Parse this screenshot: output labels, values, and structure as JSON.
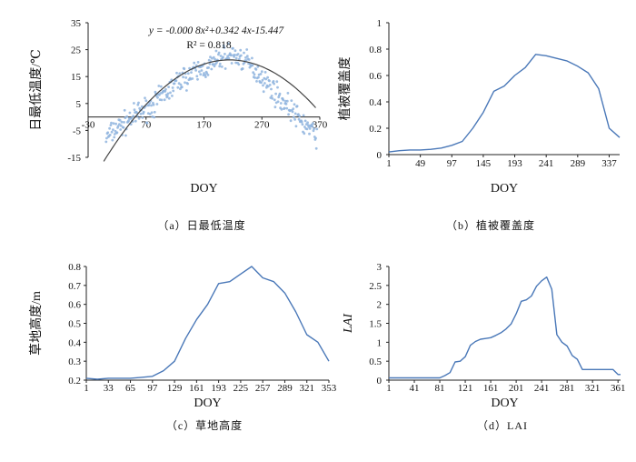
{
  "chart_data": [
    {
      "panel": "a",
      "type": "scatter",
      "caption": "（a）日最低温度",
      "xlabel": "DOY",
      "ylabel": "日最低温度/℃",
      "xlim": [
        -30,
        370
      ],
      "ylim": [
        -15,
        35
      ],
      "x_ticks": [
        -30,
        70,
        170,
        270,
        370
      ],
      "y_ticks": [
        -15,
        -5,
        5,
        15,
        25,
        35
      ],
      "equation": "y = -0.000 8x²+0.342 4x-15.447",
      "r_squared": "R² = 0.818",
      "fit": {
        "a": -0.0008,
        "b": 0.3424,
        "c": -15.447,
        "x_range": [
          1,
          365
        ]
      },
      "point_color": "#8fb4de",
      "fit_color": "#444444",
      "series": [
        {
          "x": [
            1,
            10,
            20,
            30,
            40,
            50,
            60,
            70,
            80,
            90,
            100,
            110,
            120,
            130,
            140,
            150,
            160,
            170,
            180,
            190,
            200,
            210,
            220,
            230,
            240,
            250,
            260,
            270,
            280,
            290,
            300,
            310,
            320,
            330,
            340,
            350,
            360,
            365
          ],
          "y": [
            -8,
            -6,
            -4,
            -3,
            -1,
            0,
            2,
            3,
            4,
            6,
            8,
            10,
            12,
            14,
            15,
            16,
            17,
            18,
            19,
            20,
            22,
            23,
            23,
            22,
            21,
            19,
            17,
            15,
            12,
            10,
            7,
            5,
            3,
            0,
            -2,
            -4,
            -6,
            -7
          ]
        }
      ]
    },
    {
      "panel": "b",
      "type": "line",
      "caption": "（b）植被覆盖度",
      "xlabel": "DOY",
      "ylabel": "植被覆盖度",
      "xlim": [
        1,
        353
      ],
      "ylim": [
        0,
        1
      ],
      "x_ticks": [
        1,
        49,
        97,
        145,
        193,
        241,
        289,
        337
      ],
      "y_ticks": [
        0,
        0.2,
        0.4,
        0.6,
        0.8,
        1
      ],
      "line_color": "#4a78b8",
      "x": [
        1,
        17,
        33,
        49,
        65,
        81,
        97,
        113,
        129,
        145,
        161,
        177,
        193,
        209,
        225,
        241,
        257,
        273,
        289,
        305,
        321,
        337,
        353
      ],
      "y": [
        0.02,
        0.03,
        0.035,
        0.035,
        0.04,
        0.05,
        0.07,
        0.1,
        0.2,
        0.32,
        0.48,
        0.52,
        0.6,
        0.66,
        0.76,
        0.75,
        0.73,
        0.71,
        0.67,
        0.62,
        0.5,
        0.2,
        0.13
      ]
    },
    {
      "panel": "c",
      "type": "line",
      "caption": "（c）草地高度",
      "xlabel": "DOY",
      "ylabel": "草地高度/m",
      "xlim": [
        1,
        353
      ],
      "ylim": [
        0.2,
        0.8
      ],
      "x_ticks": [
        1,
        33,
        65,
        97,
        129,
        161,
        193,
        225,
        257,
        289,
        321,
        353
      ],
      "y_ticks": [
        0.2,
        0.3,
        0.4,
        0.5,
        0.6,
        0.7,
        0.8
      ],
      "line_color": "#4a78b8",
      "x": [
        1,
        17,
        33,
        49,
        65,
        81,
        97,
        113,
        129,
        145,
        161,
        177,
        193,
        209,
        225,
        241,
        257,
        273,
        289,
        305,
        321,
        337,
        353
      ],
      "y": [
        0.21,
        0.205,
        0.21,
        0.21,
        0.21,
        0.215,
        0.22,
        0.25,
        0.3,
        0.42,
        0.52,
        0.6,
        0.71,
        0.72,
        0.76,
        0.8,
        0.74,
        0.72,
        0.66,
        0.56,
        0.44,
        0.4,
        0.3
      ]
    },
    {
      "panel": "d",
      "type": "line",
      "caption": "（d）LAI",
      "xlabel": "DOY",
      "ylabel": "LAI",
      "xlim": [
        1,
        365
      ],
      "ylim": [
        0,
        3
      ],
      "x_ticks": [
        1,
        41,
        81,
        121,
        161,
        201,
        241,
        281,
        321,
        361
      ],
      "y_ticks": [
        0,
        0.5,
        1,
        1.5,
        2,
        2.5,
        3
      ],
      "line_color": "#4a78b8",
      "x": [
        1,
        9,
        17,
        25,
        33,
        41,
        49,
        57,
        65,
        73,
        81,
        89,
        97,
        105,
        113,
        121,
        129,
        137,
        145,
        153,
        161,
        169,
        177,
        185,
        193,
        201,
        209,
        217,
        225,
        233,
        241,
        249,
        257,
        265,
        273,
        281,
        289,
        297,
        305,
        313,
        321,
        329,
        337,
        345,
        353,
        361,
        365
      ],
      "y": [
        0.06,
        0.06,
        0.06,
        0.06,
        0.06,
        0.06,
        0.06,
        0.06,
        0.06,
        0.06,
        0.06,
        0.12,
        0.2,
        0.48,
        0.5,
        0.62,
        0.92,
        1.02,
        1.08,
        1.1,
        1.12,
        1.18,
        1.25,
        1.35,
        1.48,
        1.75,
        2.08,
        2.12,
        2.22,
        2.48,
        2.62,
        2.72,
        2.4,
        1.2,
        1.0,
        0.9,
        0.65,
        0.55,
        0.28,
        0.28,
        0.28,
        0.28,
        0.28,
        0.28,
        0.28,
        0.15,
        0.15
      ]
    }
  ]
}
